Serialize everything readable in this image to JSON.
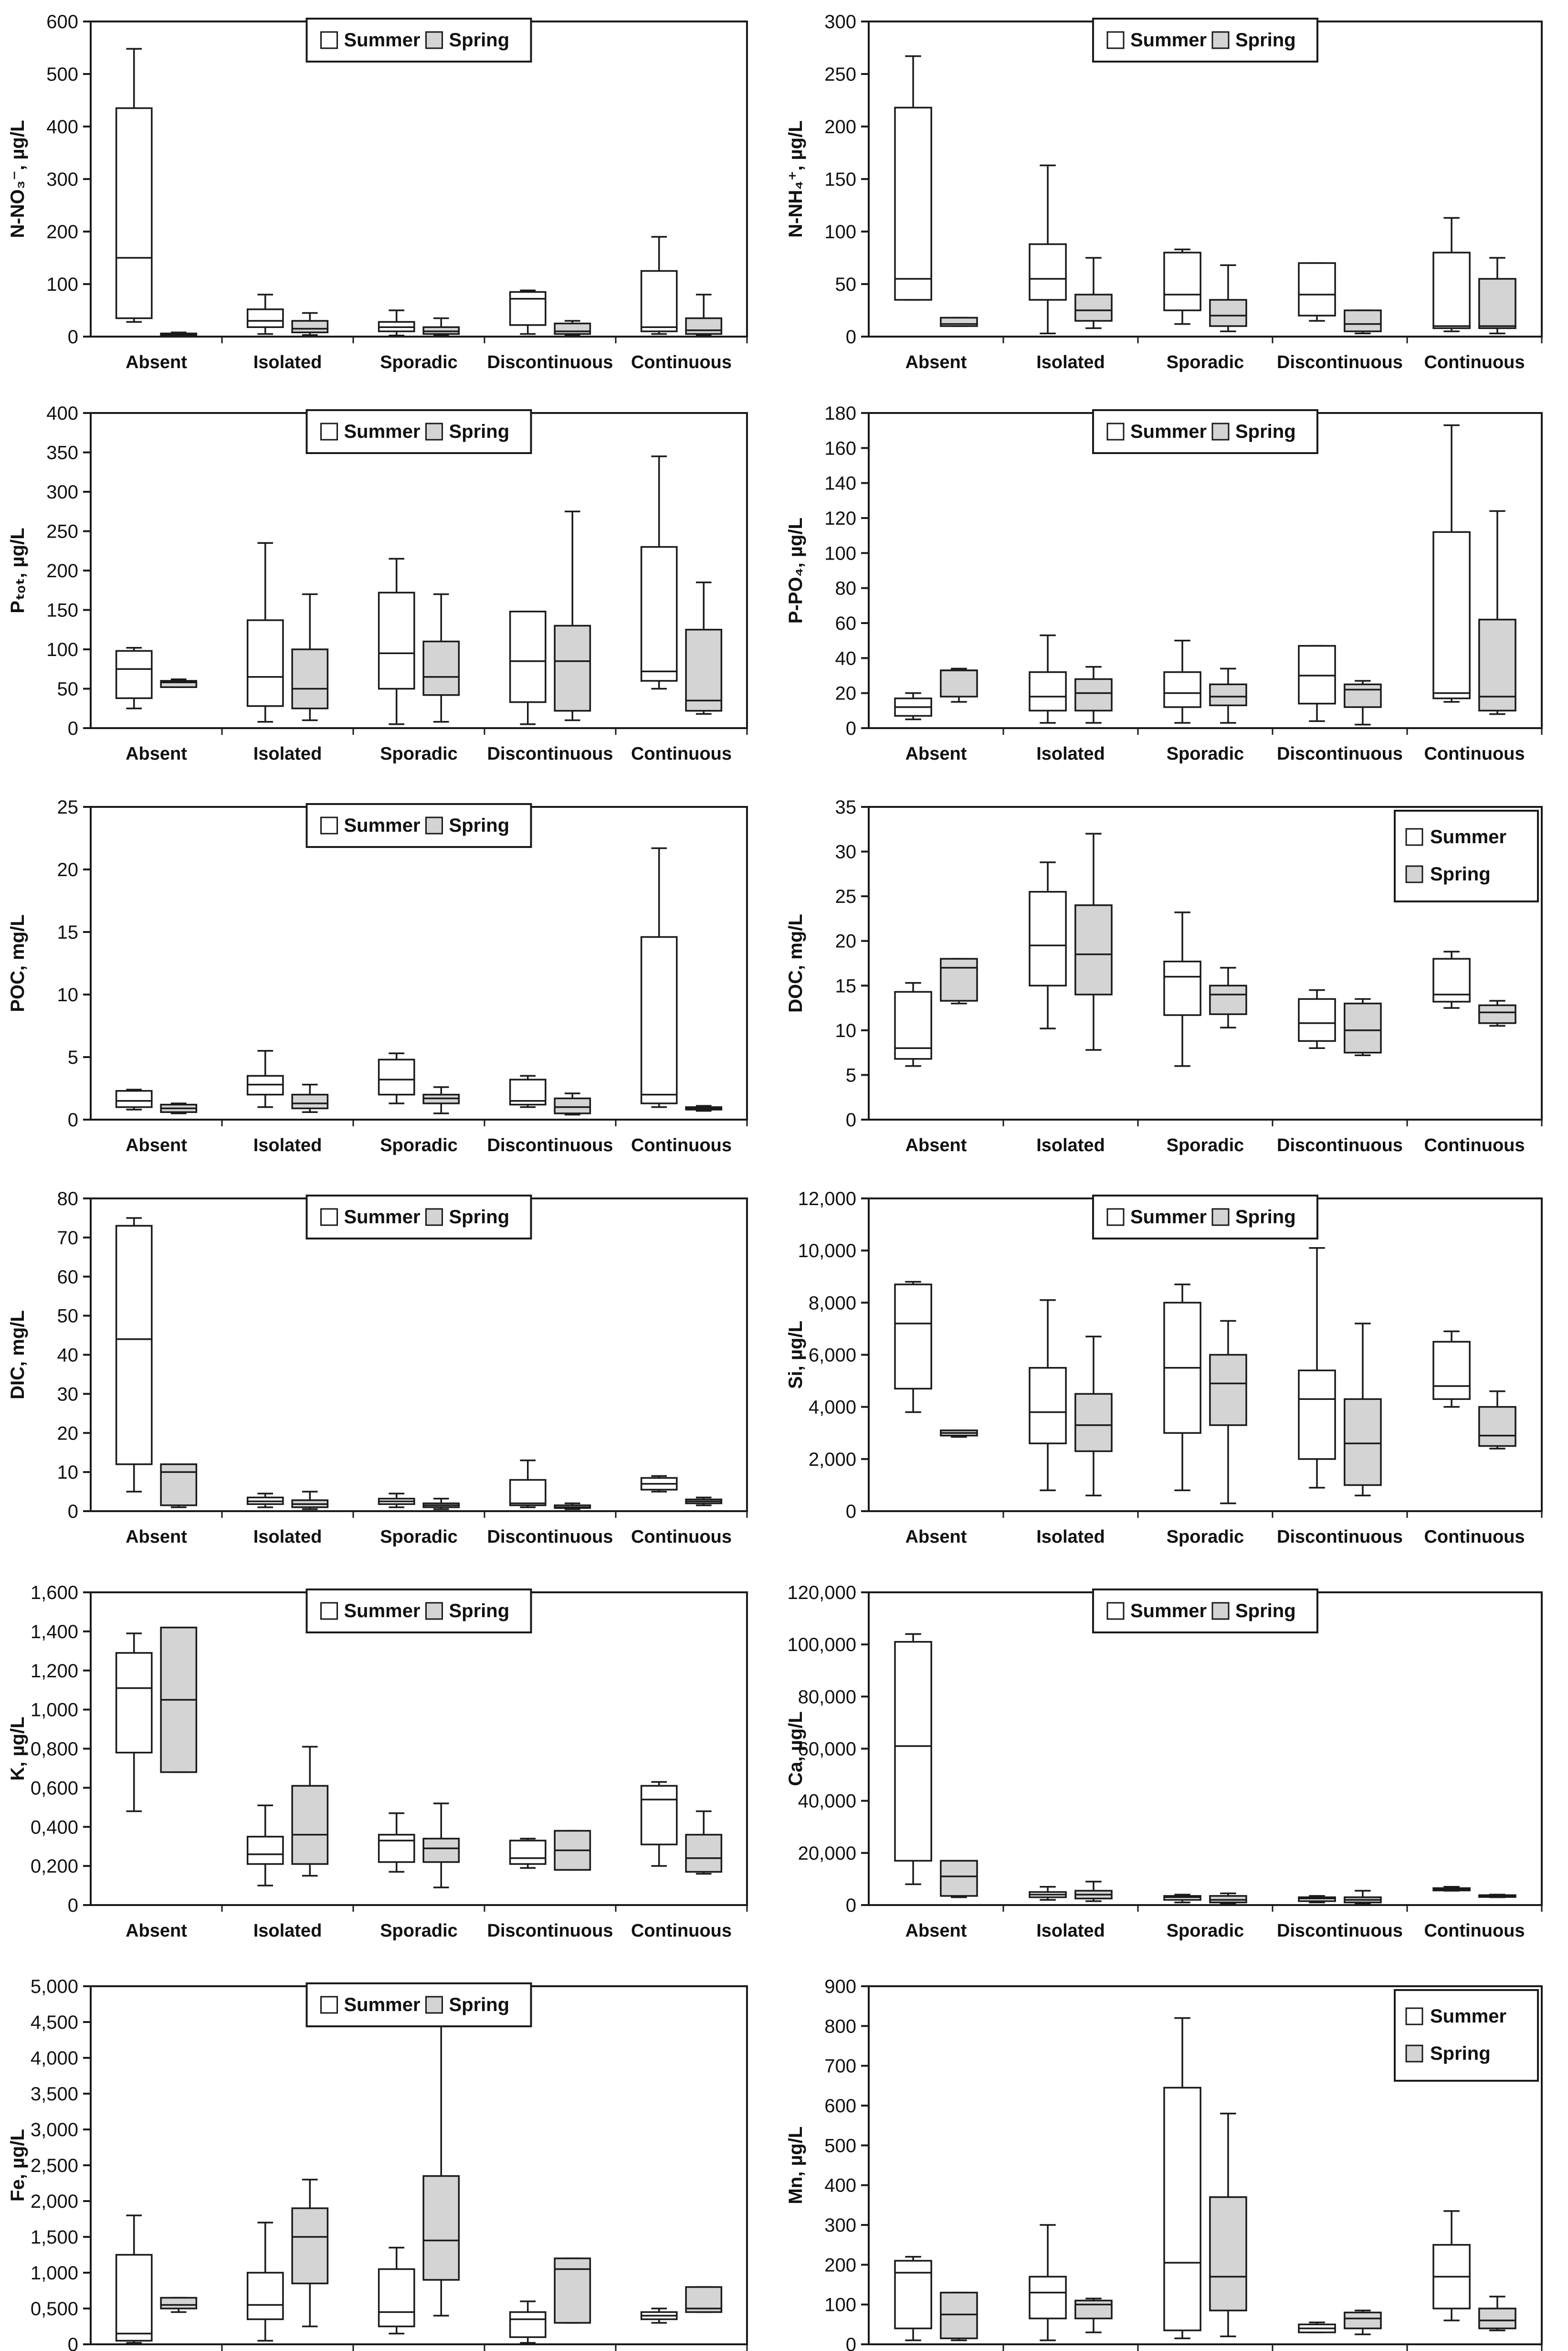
{
  "categories": [
    "Absent",
    "Isolated",
    "Sporadic",
    "Discontinuous",
    "Continuous"
  ],
  "legend": [
    "Summer",
    "Spring"
  ],
  "colors": {
    "summer": "#ffffff",
    "spring": "#d4d4d4",
    "stroke": "#1a1a1a",
    "text": "#111111"
  },
  "chart_data": [
    {
      "id": "no3",
      "type": "boxplot",
      "ylabel": "N-NO₃⁻, µg/L",
      "ylim": [
        0,
        600
      ],
      "ticks": [
        0,
        100,
        200,
        300,
        400,
        500,
        600
      ],
      "tick_labels": [
        "0",
        "100",
        "200",
        "300",
        "400",
        "500",
        "600"
      ],
      "legend_pos": "top-center",
      "summer": [
        [
          28,
          35,
          150,
          435,
          548
        ],
        [
          5,
          18,
          30,
          52,
          80
        ],
        [
          2,
          10,
          18,
          28,
          50
        ],
        [
          5,
          22,
          72,
          85,
          88
        ],
        [
          5,
          10,
          18,
          125,
          190
        ]
      ],
      "spring": [
        [
          1,
          2,
          4,
          6,
          8
        ],
        [
          3,
          8,
          15,
          30,
          45
        ],
        [
          2,
          5,
          10,
          18,
          35
        ],
        [
          2,
          5,
          10,
          25,
          30
        ],
        [
          2,
          5,
          12,
          35,
          80
        ]
      ]
    },
    {
      "id": "nh4",
      "type": "boxplot",
      "ylabel": "N-NH₄⁺, µg/L",
      "ylim": [
        0,
        300
      ],
      "ticks": [
        0,
        50,
        100,
        150,
        200,
        250,
        300
      ],
      "tick_labels": [
        "0",
        "50",
        "100",
        "150",
        "200",
        "250",
        "300"
      ],
      "legend_pos": "top-center",
      "summer": [
        [
          35,
          35,
          55,
          218,
          267
        ],
        [
          3,
          35,
          55,
          88,
          163
        ],
        [
          12,
          25,
          40,
          80,
          83
        ],
        [
          15,
          20,
          40,
          70,
          70
        ],
        [
          5,
          8,
          10,
          80,
          113
        ]
      ],
      "spring": [
        [
          10,
          10,
          12,
          18,
          18
        ],
        [
          8,
          15,
          25,
          40,
          75
        ],
        [
          5,
          10,
          20,
          35,
          68
        ],
        [
          3,
          5,
          12,
          25,
          25
        ],
        [
          3,
          8,
          10,
          55,
          75
        ]
      ]
    },
    {
      "id": "ptot",
      "type": "boxplot",
      "ylabel": "Pₜₒₜ, µg/L",
      "ylim": [
        0,
        400
      ],
      "ticks": [
        0,
        50,
        100,
        150,
        200,
        250,
        300,
        350,
        400
      ],
      "tick_labels": [
        "0",
        "50",
        "100",
        "150",
        "200",
        "250",
        "300",
        "350",
        "400"
      ],
      "legend_pos": "top-center",
      "summer": [
        [
          25,
          38,
          75,
          98,
          102
        ],
        [
          8,
          28,
          65,
          137,
          235
        ],
        [
          5,
          50,
          95,
          172,
          215
        ],
        [
          5,
          33,
          85,
          148,
          148
        ],
        [
          50,
          60,
          72,
          230,
          345
        ]
      ],
      "spring": [
        [
          52,
          52,
          58,
          60,
          62
        ],
        [
          10,
          25,
          50,
          100,
          170
        ],
        [
          8,
          42,
          65,
          110,
          170
        ],
        [
          10,
          22,
          85,
          130,
          275
        ],
        [
          18,
          22,
          35,
          125,
          185
        ]
      ]
    },
    {
      "id": "po4",
      "type": "boxplot",
      "ylabel": "P-PO₄, µg/L",
      "ylim": [
        0,
        180
      ],
      "ticks": [
        0,
        20,
        40,
        60,
        80,
        100,
        120,
        140,
        160,
        180
      ],
      "tick_labels": [
        "0",
        "20",
        "40",
        "60",
        "80",
        "100",
        "120",
        "140",
        "160",
        "180"
      ],
      "legend_pos": "top-center",
      "summer": [
        [
          5,
          7,
          12,
          17,
          20
        ],
        [
          3,
          10,
          18,
          32,
          53
        ],
        [
          3,
          12,
          20,
          32,
          50
        ],
        [
          4,
          14,
          30,
          47,
          47
        ],
        [
          15,
          17,
          20,
          112,
          173
        ]
      ],
      "spring": [
        [
          15,
          18,
          33,
          33,
          34
        ],
        [
          3,
          10,
          20,
          28,
          35
        ],
        [
          3,
          13,
          18,
          25,
          34
        ],
        [
          2,
          12,
          22,
          25,
          27
        ],
        [
          8,
          10,
          18,
          62,
          124
        ]
      ]
    },
    {
      "id": "poc",
      "type": "boxplot",
      "ylabel": "POC, mg/L",
      "ylim": [
        0,
        25
      ],
      "ticks": [
        0,
        5,
        10,
        15,
        20,
        25
      ],
      "tick_labels": [
        "0",
        "5",
        "10",
        "15",
        "20",
        "25"
      ],
      "legend_pos": "top-center",
      "summer": [
        [
          0.8,
          1.0,
          1.5,
          2.3,
          2.4
        ],
        [
          1.0,
          2.0,
          2.8,
          3.5,
          5.5
        ],
        [
          1.3,
          2.0,
          3.2,
          4.8,
          5.3
        ],
        [
          1.0,
          1.2,
          1.5,
          3.2,
          3.5
        ],
        [
          1.0,
          1.3,
          2.0,
          14.6,
          21.7
        ]
      ],
      "spring": [
        [
          0.5,
          0.6,
          0.9,
          1.2,
          1.3
        ],
        [
          0.6,
          0.9,
          1.3,
          2.0,
          2.8
        ],
        [
          0.5,
          1.3,
          1.7,
          2.0,
          2.6
        ],
        [
          0.4,
          0.5,
          1.0,
          1.7,
          2.1
        ],
        [
          0.7,
          0.8,
          0.9,
          1.0,
          1.1
        ]
      ]
    },
    {
      "id": "doc",
      "type": "boxplot",
      "ylabel": "DOC, mg/L",
      "ylim": [
        0,
        35
      ],
      "ticks": [
        0,
        5,
        10,
        15,
        20,
        25,
        30,
        35
      ],
      "tick_labels": [
        "0",
        "5",
        "10",
        "15",
        "20",
        "25",
        "30",
        "35"
      ],
      "legend_pos": "top-right",
      "summer": [
        [
          6.0,
          6.8,
          8.0,
          14.3,
          15.3
        ],
        [
          10.2,
          15.0,
          19.5,
          25.5,
          28.8
        ],
        [
          6.0,
          11.7,
          16.0,
          17.7,
          23.2
        ],
        [
          8.0,
          8.8,
          10.8,
          13.5,
          14.5
        ],
        [
          12.5,
          13.2,
          14.0,
          18.0,
          18.8
        ]
      ],
      "spring": [
        [
          13.0,
          13.3,
          17.0,
          18.0,
          18.0
        ],
        [
          7.8,
          14.0,
          18.5,
          24.0,
          32.0
        ],
        [
          10.3,
          11.8,
          14.0,
          15.0,
          17.0
        ],
        [
          7.2,
          7.5,
          10.0,
          13.0,
          13.5
        ],
        [
          10.5,
          10.8,
          12.0,
          12.8,
          13.3
        ]
      ]
    },
    {
      "id": "dic",
      "type": "boxplot",
      "ylabel": "DIC, mg/L",
      "ylim": [
        0,
        80
      ],
      "ticks": [
        0,
        10,
        20,
        30,
        40,
        50,
        60,
        70,
        80
      ],
      "tick_labels": [
        "0",
        "10",
        "20",
        "30",
        "40",
        "50",
        "60",
        "70",
        "80"
      ],
      "legend_pos": "top-center",
      "summer": [
        [
          5,
          12,
          44,
          73,
          75
        ],
        [
          1,
          1.8,
          2.5,
          3.5,
          4.5
        ],
        [
          1,
          1.8,
          2.5,
          3.2,
          4.5
        ],
        [
          1,
          1.5,
          2,
          8,
          13
        ],
        [
          5,
          5.5,
          7,
          8.5,
          9
        ]
      ],
      "spring": [
        [
          1,
          1.5,
          10,
          12,
          12
        ],
        [
          0.5,
          1,
          1.8,
          2.8,
          5
        ],
        [
          0.5,
          1,
          1.5,
          2,
          3.2
        ],
        [
          0.5,
          0.8,
          1,
          1.5,
          2
        ],
        [
          1.5,
          2,
          2.5,
          3,
          3.5
        ]
      ]
    },
    {
      "id": "si",
      "type": "boxplot",
      "ylabel": "Si, µg/L",
      "ylim": [
        0,
        12000
      ],
      "ticks": [
        0,
        2000,
        4000,
        6000,
        8000,
        10000,
        12000
      ],
      "tick_labels": [
        "0",
        "2,000",
        "4,000",
        "6,000",
        "8,000",
        "10,000",
        "12,000"
      ],
      "legend_pos": "top-center",
      "summer": [
        [
          3800,
          4700,
          7200,
          8700,
          8800
        ],
        [
          800,
          2600,
          3800,
          5500,
          8100
        ],
        [
          800,
          3000,
          5500,
          8000,
          8700
        ],
        [
          900,
          2000,
          4300,
          5400,
          10100
        ],
        [
          4000,
          4300,
          4800,
          6500,
          6900
        ]
      ],
      "spring": [
        [
          2850,
          2900,
          3000,
          3100,
          3100
        ],
        [
          600,
          2300,
          3300,
          4500,
          6700
        ],
        [
          300,
          3300,
          4900,
          6000,
          7300
        ],
        [
          600,
          1000,
          2600,
          4300,
          7200
        ],
        [
          2400,
          2500,
          2900,
          4000,
          4600
        ]
      ]
    },
    {
      "id": "k",
      "type": "boxplot",
      "ylabel": "K, µg/L",
      "ylim": [
        0,
        1.6
      ],
      "ticks": [
        0,
        0.2,
        0.4,
        0.6,
        0.8,
        1.0,
        1.2,
        1.4,
        1.6
      ],
      "tick_labels": [
        "0",
        "0,200",
        "0,400",
        "0,600",
        "0,800",
        "1,000",
        "1,200",
        "1,400",
        "1,600"
      ],
      "legend_pos": "top-center",
      "summer": [
        [
          0.48,
          0.78,
          1.11,
          1.29,
          1.39
        ],
        [
          0.1,
          0.21,
          0.26,
          0.35,
          0.51
        ],
        [
          0.17,
          0.22,
          0.33,
          0.36,
          0.47
        ],
        [
          0.19,
          0.21,
          0.24,
          0.33,
          0.34
        ],
        [
          0.2,
          0.31,
          0.54,
          0.61,
          0.63
        ]
      ],
      "spring": [
        [
          0.68,
          0.68,
          1.05,
          1.42,
          1.42
        ],
        [
          0.15,
          0.21,
          0.36,
          0.61,
          0.81
        ],
        [
          0.09,
          0.22,
          0.29,
          0.34,
          0.52
        ],
        [
          0.18,
          0.18,
          0.28,
          0.38,
          0.38
        ],
        [
          0.16,
          0.17,
          0.24,
          0.36,
          0.48
        ]
      ]
    },
    {
      "id": "ca",
      "type": "boxplot",
      "ylabel": "Ca, µg/L",
      "ylim": [
        0,
        120000
      ],
      "ticks": [
        0,
        20000,
        40000,
        60000,
        80000,
        100000,
        120000
      ],
      "tick_labels": [
        "0",
        "20,000",
        "40,000",
        "60,000",
        "80,000",
        "100,000",
        "120,000"
      ],
      "legend_pos": "top-center",
      "summer": [
        [
          8000,
          17000,
          61000,
          101000,
          104000
        ],
        [
          2000,
          3000,
          4000,
          5000,
          7000
        ],
        [
          1000,
          2000,
          3000,
          3500,
          4000
        ],
        [
          1000,
          1500,
          2500,
          3000,
          3500
        ],
        [
          5500,
          5600,
          6000,
          6500,
          7000
        ]
      ],
      "spring": [
        [
          3000,
          3500,
          11000,
          17000,
          17000
        ],
        [
          1500,
          2500,
          4000,
          5500,
          9000
        ],
        [
          500,
          1000,
          2000,
          3500,
          4500
        ],
        [
          500,
          1000,
          2000,
          3000,
          5500
        ],
        [
          3000,
          3100,
          3500,
          3800,
          4000
        ]
      ]
    },
    {
      "id": "fe",
      "type": "boxplot",
      "ylabel": "Fe, µg/L",
      "ylim": [
        0,
        5.0
      ],
      "ticks": [
        0,
        0.5,
        1.0,
        1.5,
        2.0,
        2.5,
        3.0,
        3.5,
        4.0,
        4.5,
        5.0
      ],
      "tick_labels": [
        "0",
        "0,500",
        "1,000",
        "1,500",
        "2,000",
        "2,500",
        "3,000",
        "3,500",
        "4,000",
        "4,500",
        "5,000"
      ],
      "legend_pos": "top-center",
      "summer": [
        [
          0.02,
          0.05,
          0.15,
          1.25,
          1.8
        ],
        [
          0.05,
          0.35,
          0.55,
          1.0,
          1.7
        ],
        [
          0.15,
          0.25,
          0.45,
          1.05,
          1.35
        ],
        [
          0.02,
          0.1,
          0.35,
          0.45,
          0.6
        ],
        [
          0.3,
          0.35,
          0.4,
          0.45,
          0.5
        ]
      ],
      "spring": [
        [
          0.45,
          0.5,
          0.55,
          0.65,
          0.65
        ],
        [
          0.25,
          0.85,
          1.5,
          1.9,
          2.3
        ],
        [
          0.4,
          0.9,
          1.45,
          2.35,
          4.45
        ],
        [
          0.3,
          0.3,
          1.05,
          1.2,
          1.2
        ],
        [
          0.45,
          0.45,
          0.5,
          0.8,
          0.8
        ]
      ]
    },
    {
      "id": "mn",
      "type": "boxplot",
      "ylabel": "Mn, µg/L",
      "ylim": [
        0,
        900
      ],
      "ticks": [
        0,
        100,
        200,
        300,
        400,
        500,
        600,
        700,
        800,
        900
      ],
      "tick_labels": [
        "0",
        "100",
        "200",
        "300",
        "400",
        "500",
        "600",
        "700",
        "800",
        "900"
      ],
      "legend_pos": "top-right",
      "summer": [
        [
          10,
          40,
          180,
          210,
          220
        ],
        [
          10,
          65,
          130,
          170,
          300
        ],
        [
          15,
          35,
          205,
          645,
          820
        ],
        [
          30,
          30,
          40,
          50,
          55
        ],
        [
          60,
          90,
          170,
          250,
          335
        ]
      ],
      "spring": [
        [
          10,
          15,
          75,
          130,
          130
        ],
        [
          30,
          65,
          100,
          110,
          115
        ],
        [
          20,
          85,
          170,
          370,
          580
        ],
        [
          25,
          40,
          65,
          80,
          85
        ],
        [
          35,
          40,
          60,
          90,
          120
        ]
      ]
    }
  ]
}
